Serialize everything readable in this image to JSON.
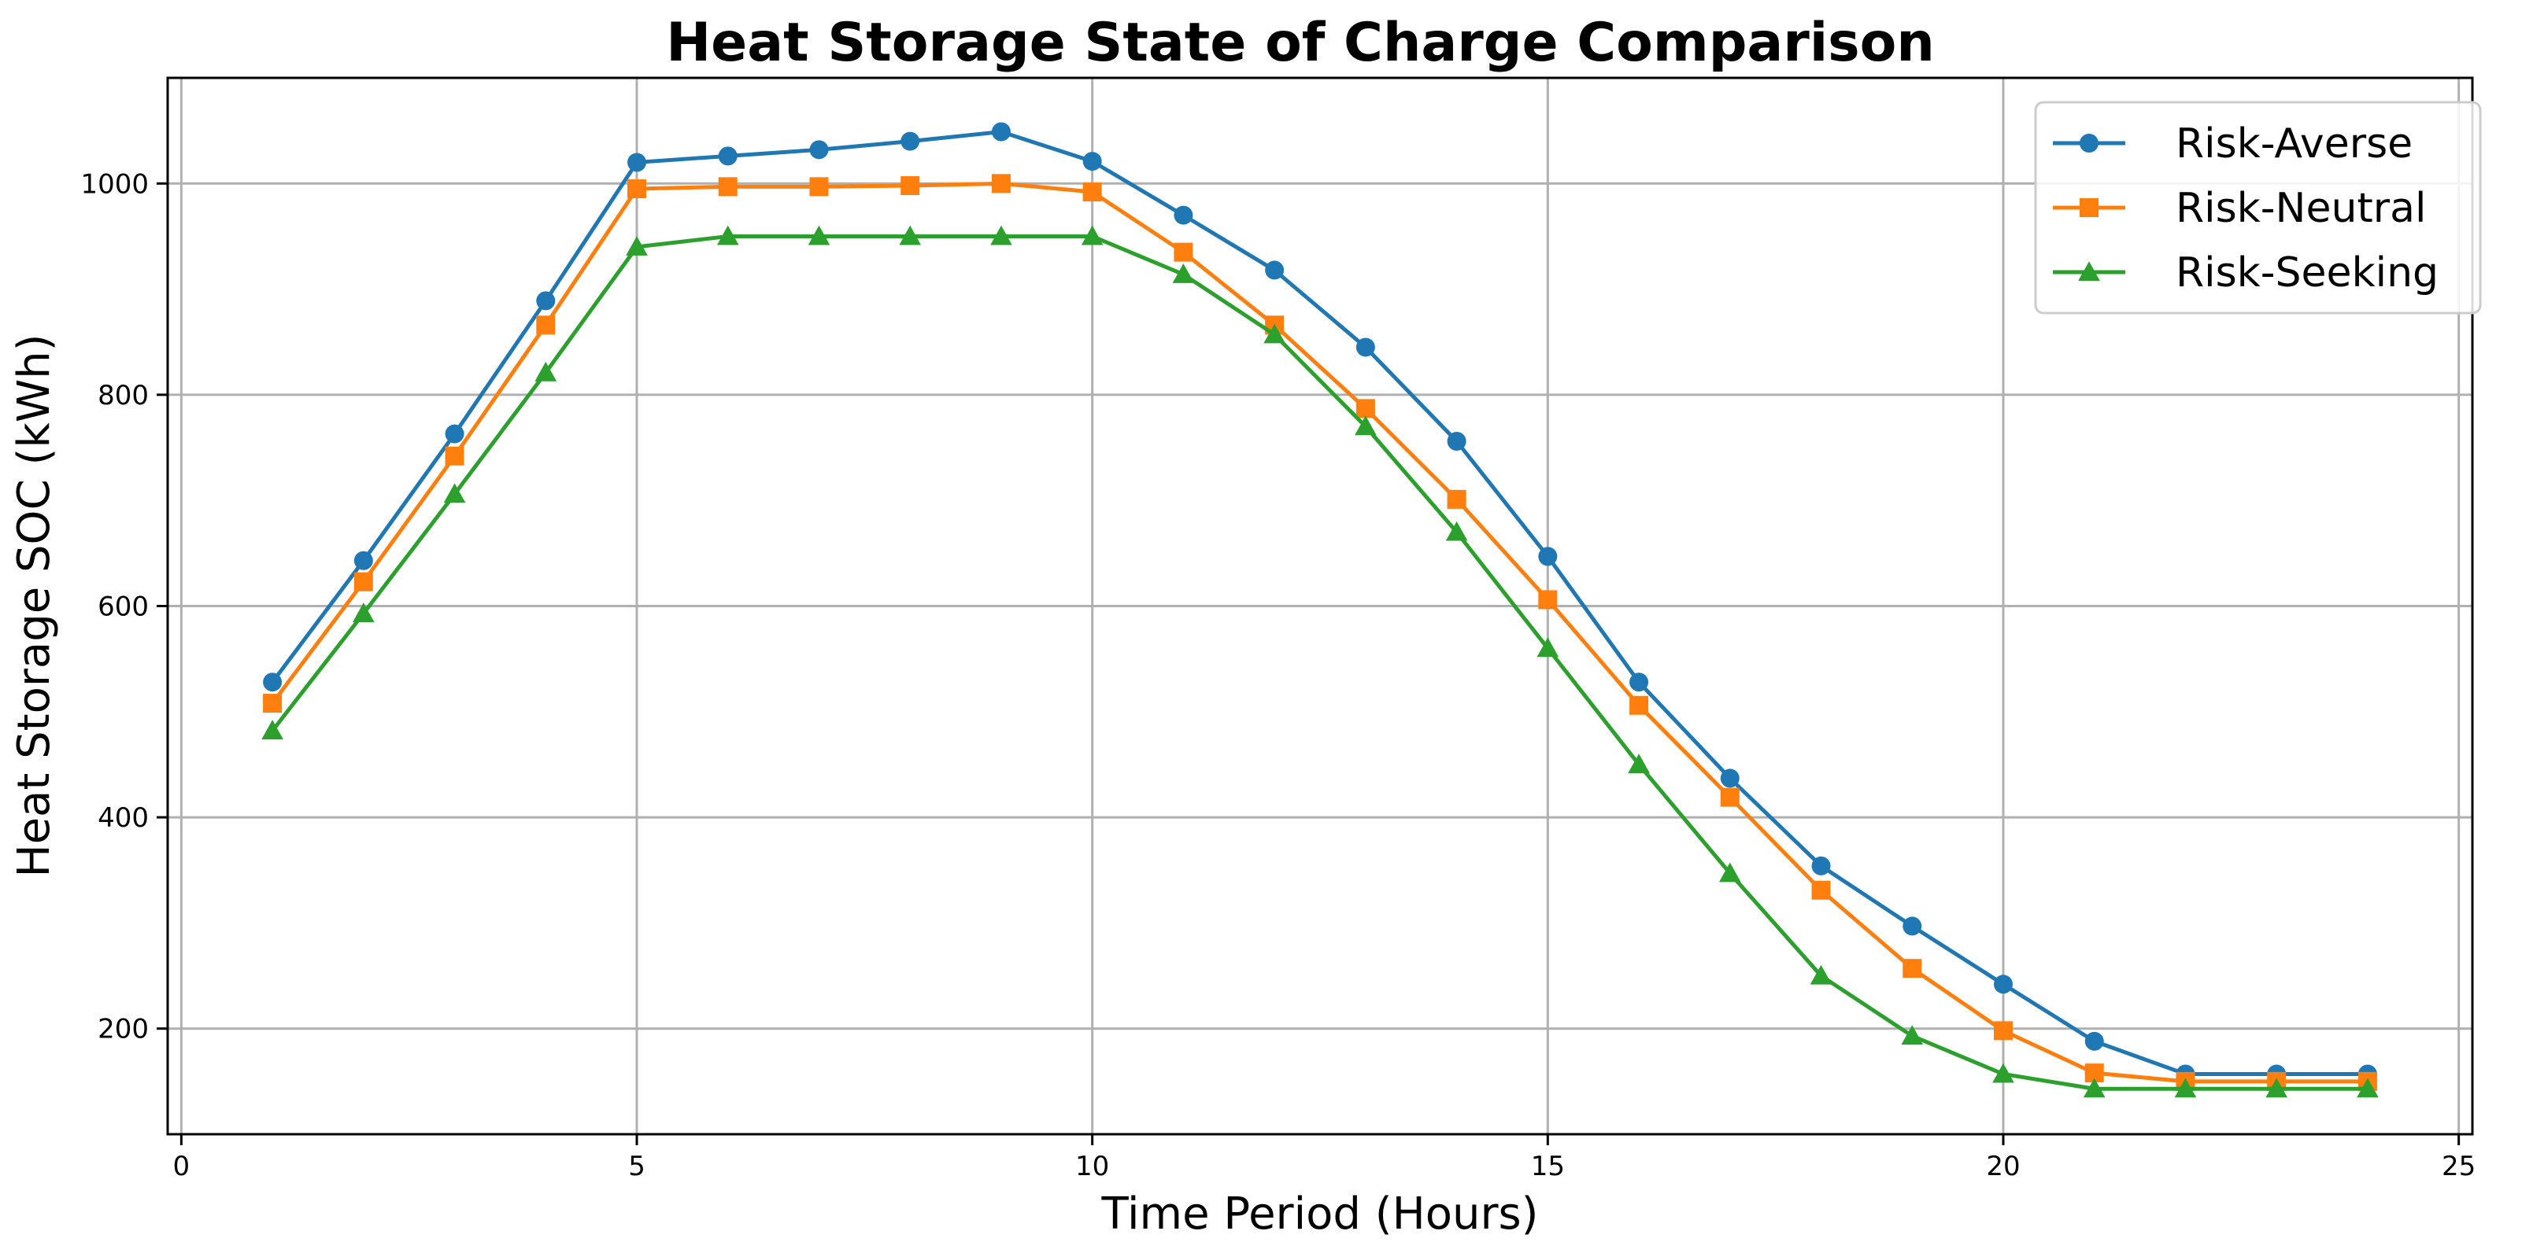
{
  "chart_data": {
    "type": "line",
    "title": "Heat Storage State of Charge Comparison",
    "xlabel": "Time Period (Hours)",
    "ylabel": "Heat Storage SOC (kWh)",
    "xlim": [
      -0.15,
      25.15
    ],
    "ylim": [
      100,
      1100
    ],
    "xticks": [
      0,
      5,
      10,
      15,
      20,
      25
    ],
    "yticks": [
      200,
      400,
      600,
      800,
      1000
    ],
    "grid": true,
    "legend_position": "top-right",
    "x": [
      1,
      2,
      3,
      4,
      5,
      6,
      7,
      8,
      9,
      10,
      11,
      12,
      13,
      14,
      15,
      16,
      17,
      18,
      19,
      20,
      21,
      22,
      23,
      24
    ],
    "series": [
      {
        "name": "Risk-Averse",
        "color": "#1f77b4",
        "marker": "circle",
        "values": [
          528,
          643,
          763,
          889,
          1020,
          1026,
          1032,
          1040,
          1049,
          1021,
          970,
          918,
          845,
          756,
          647,
          528,
          437,
          354,
          297,
          242,
          188,
          157,
          157,
          157
        ]
      },
      {
        "name": "Risk-Neutral",
        "color": "#ff7f0e",
        "marker": "square",
        "values": [
          508,
          623,
          742,
          866,
          995,
          997,
          997,
          998,
          1000,
          992,
          935,
          866,
          787,
          701,
          606,
          506,
          419,
          331,
          257,
          198,
          158,
          150,
          150,
          150
        ]
      },
      {
        "name": "Risk-Seeking",
        "color": "#2ca02c",
        "marker": "triangle",
        "values": [
          482,
          593,
          706,
          821,
          940,
          950,
          950,
          950,
          950,
          950,
          914,
          857,
          770,
          670,
          560,
          450,
          347,
          250,
          193,
          157,
          143,
          143,
          143,
          143
        ]
      }
    ]
  }
}
